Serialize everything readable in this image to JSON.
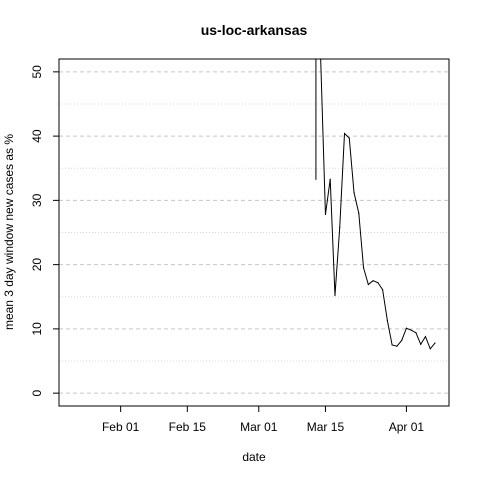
{
  "chart_data": {
    "type": "line",
    "title": "us-loc-arkansas",
    "xlabel": "date",
    "ylabel": "mean  3  day window new cases as %",
    "x_range": [
      "2020-01-22",
      "2020-04-07"
    ],
    "ylim": [
      -2,
      52
    ],
    "x_ticks": [
      {
        "date": "2020-02-01",
        "label": "Feb 01"
      },
      {
        "date": "2020-02-15",
        "label": "Feb 15"
      },
      {
        "date": "2020-03-01",
        "label": "Mar 01"
      },
      {
        "date": "2020-03-15",
        "label": "Mar 15"
      },
      {
        "date": "2020-04-01",
        "label": "Apr 01"
      }
    ],
    "y_ticks": [
      {
        "value": 0,
        "label": "0"
      },
      {
        "value": 10,
        "label": "10"
      },
      {
        "value": 20,
        "label": "20"
      },
      {
        "value": 30,
        "label": "30"
      },
      {
        "value": 40,
        "label": "40"
      },
      {
        "value": 50,
        "label": "50"
      }
    ],
    "minor_gridlines": [
      5,
      15,
      25,
      35,
      45
    ],
    "grid": "horizontal dashed",
    "series": [
      {
        "color": "#000000",
        "points": [
          {
            "x": "2020-03-13",
            "y": 33.3
          },
          {
            "x": "2020-03-13",
            "y": 56.0
          },
          {
            "x": "2020-03-14",
            "y": 56.0
          },
          {
            "x": "2020-03-15",
            "y": 27.8
          },
          {
            "x": "2020-03-16",
            "y": 33.3
          },
          {
            "x": "2020-03-17",
            "y": 15.2
          },
          {
            "x": "2020-03-18",
            "y": 25.8
          },
          {
            "x": "2020-03-19",
            "y": 40.4
          },
          {
            "x": "2020-03-20",
            "y": 39.7
          },
          {
            "x": "2020-03-21",
            "y": 31.2
          },
          {
            "x": "2020-03-22",
            "y": 28.0
          },
          {
            "x": "2020-03-23",
            "y": 19.5
          },
          {
            "x": "2020-03-24",
            "y": 16.9
          },
          {
            "x": "2020-03-25",
            "y": 17.5
          },
          {
            "x": "2020-03-26",
            "y": 17.2
          },
          {
            "x": "2020-03-27",
            "y": 16.1
          },
          {
            "x": "2020-03-28",
            "y": 11.3
          },
          {
            "x": "2020-03-29",
            "y": 7.5
          },
          {
            "x": "2020-03-30",
            "y": 7.3
          },
          {
            "x": "2020-03-31",
            "y": 8.2
          },
          {
            "x": "2020-04-01",
            "y": 10.1
          },
          {
            "x": "2020-04-02",
            "y": 9.8
          },
          {
            "x": "2020-04-03",
            "y": 9.4
          },
          {
            "x": "2020-04-04",
            "y": 7.6
          },
          {
            "x": "2020-04-05",
            "y": 8.8
          },
          {
            "x": "2020-04-06",
            "y": 6.9
          },
          {
            "x": "2020-04-07",
            "y": 7.8
          }
        ]
      }
    ]
  }
}
